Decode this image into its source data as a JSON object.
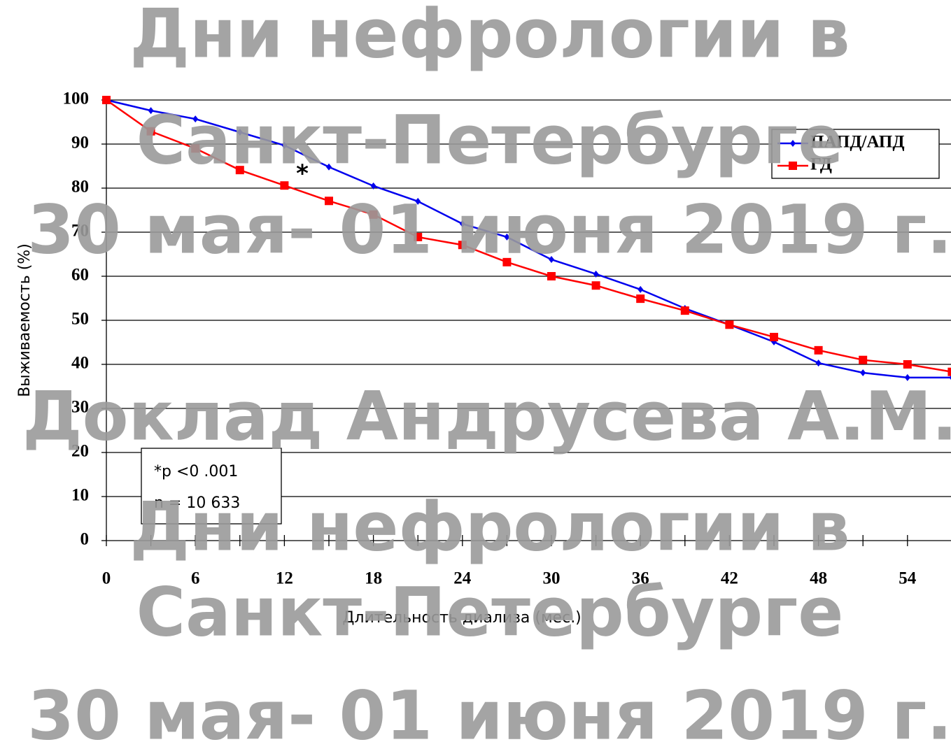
{
  "chart_data": {
    "type": "line",
    "x_label": "Длительность диализа  (мес.)",
    "y_label": "Выживаемость  (%)",
    "x": [
      0,
      3,
      6,
      9,
      12,
      15,
      18,
      21,
      24,
      27,
      30,
      33,
      36,
      39,
      42,
      45,
      48,
      51,
      54,
      57
    ],
    "series": [
      {
        "name": "ПАПД/АПД",
        "color": "#0000ee",
        "marker": "diamond",
        "values": [
          100,
          97.6,
          95.7,
          92.7,
          89.7,
          84.8,
          80.5,
          77,
          71.9,
          68.9,
          63.8,
          60.5,
          57,
          52.7,
          49,
          45.1,
          40.3,
          38.1,
          37,
          37
        ]
      },
      {
        "name": "ГД",
        "color": "#ff0000",
        "marker": "square",
        "values": [
          100,
          92.9,
          89,
          84.1,
          80.6,
          77.1,
          74,
          68.9,
          67.1,
          63.2,
          60,
          57.9,
          54.9,
          52.2,
          49,
          46.2,
          43.2,
          41,
          40,
          38.3
        ]
      }
    ],
    "xlim": [
      0,
      57
    ],
    "ylim": [
      0,
      100
    ],
    "xticks": [
      0,
      6,
      12,
      18,
      24,
      30,
      36,
      42,
      48,
      54
    ],
    "yticks": [
      0,
      10,
      20,
      30,
      40,
      50,
      60,
      70,
      80,
      90,
      100
    ],
    "grid": true,
    "legend": "upper right",
    "annotations": [
      "*",
      "*p <0 .001",
      "n = 10 633"
    ],
    "watermark": [
      "Дни нефрологии в",
      "Санкт-Петербурге",
      "30 мая- 01 июня 2019 г.",
      "Доклад Андрусева А.М.",
      "Дни нефрологии в",
      "Санкт-Петербурге",
      "30 мая- 01 июня 2019 г."
    ]
  }
}
